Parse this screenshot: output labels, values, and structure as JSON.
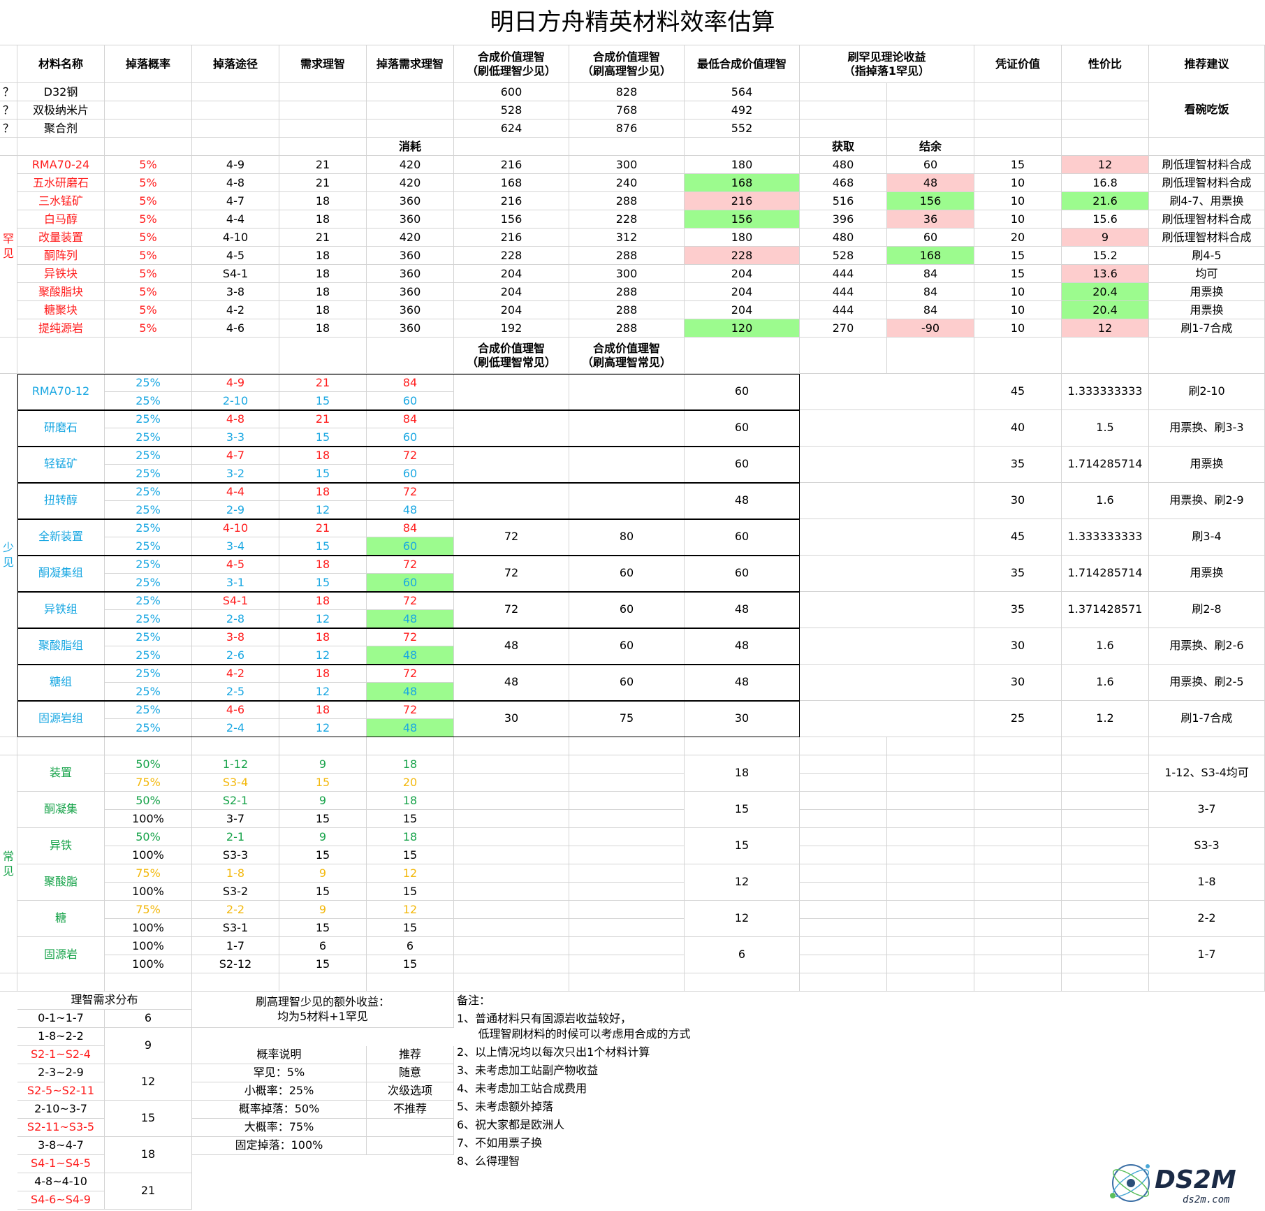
{
  "title": "明日方舟精英材料效率估算",
  "header": [
    "",
    "材料名称",
    "掉落概率",
    "掉落途径",
    "需求理智",
    "掉落需求理智",
    "合成价值理智\n（刷低理智少见）",
    "合成价值理智\n（刷高理智少见）",
    "最低合成价值理智",
    "刷罕见理论收益\n（指掉落1罕见）",
    "",
    "凭证价值",
    "性价比",
    "推荐建议"
  ],
  "top_rows": [
    [
      "？",
      "D32钢",
      "",
      "",
      "",
      "",
      "600",
      "828",
      "564",
      "",
      "",
      "",
      "",
      ""
    ],
    [
      "？",
      "双极纳米片",
      "",
      "",
      "",
      "",
      "528",
      "768",
      "492",
      "",
      "",
      "",
      "",
      ""
    ],
    [
      "？",
      "聚合剂",
      "",
      "",
      "",
      "",
      "624",
      "876",
      "552",
      "",
      "",
      "",
      "",
      ""
    ]
  ],
  "top_advice": "看碗吃饭",
  "rare_sub": [
    "",
    "",
    "",
    "",
    "",
    "消耗",
    "",
    "",
    "",
    "获取",
    "结余",
    "",
    "",
    ""
  ],
  "rare_label": "罕\n见",
  "rare_rows": [
    [
      "",
      "RMA70-24",
      "5%",
      "4-9",
      "21",
      "420",
      "216",
      "300",
      "180",
      "480",
      "60",
      "15",
      "12",
      "刷低理智材料合成"
    ],
    [
      "",
      "五水研磨石",
      "5%",
      "4-8",
      "21",
      "420",
      "168",
      "240",
      "168",
      "468",
      "48",
      "10",
      "16.8",
      "刷低理智材料合成"
    ],
    [
      "",
      "三水锰矿",
      "5%",
      "4-7",
      "18",
      "360",
      "216",
      "288",
      "216",
      "516",
      "156",
      "10",
      "21.6",
      "刷4-7、用票换"
    ],
    [
      "",
      "白马醇",
      "5%",
      "4-4",
      "18",
      "360",
      "156",
      "228",
      "156",
      "396",
      "36",
      "10",
      "15.6",
      "刷低理智材料合成"
    ],
    [
      "",
      "改量装置",
      "5%",
      "4-10",
      "21",
      "420",
      "216",
      "312",
      "180",
      "480",
      "60",
      "20",
      "9",
      "刷低理智材料合成"
    ],
    [
      "",
      "酮阵列",
      "5%",
      "4-5",
      "18",
      "360",
      "228",
      "288",
      "228",
      "528",
      "168",
      "15",
      "15.2",
      "刷4-5"
    ],
    [
      "",
      "异铁块",
      "5%",
      "S4-1",
      "18",
      "360",
      "204",
      "300",
      "204",
      "444",
      "84",
      "15",
      "13.6",
      "均可"
    ],
    [
      "",
      "聚酸脂块",
      "5%",
      "3-8",
      "18",
      "360",
      "204",
      "288",
      "204",
      "444",
      "84",
      "10",
      "20.4",
      "用票换"
    ],
    [
      "",
      "糖聚块",
      "5%",
      "4-2",
      "18",
      "360",
      "204",
      "288",
      "204",
      "444",
      "84",
      "10",
      "20.4",
      "用票换"
    ],
    [
      "",
      "提纯源岩",
      "5%",
      "4-6",
      "18",
      "360",
      "192",
      "288",
      "120",
      "270",
      "-90",
      "10",
      "12",
      "刷1-7合成"
    ]
  ],
  "mid_header": [
    "",
    "",
    "",
    "",
    "",
    "",
    "合成价值理智\n（刷低理智常见）",
    "合成价值理智\n（刷高理智常见）",
    "",
    "",
    "",
    "",
    "",
    ""
  ],
  "uncommon_label": "少\n见",
  "uncommon": [
    {
      "name": "RMA70-12",
      "r1": [
        "25%",
        "4-9",
        "21",
        "84"
      ],
      "r2": [
        "25%",
        "2-10",
        "15",
        "60"
      ],
      "low": "",
      "high": "",
      "min": "60",
      "cert": "45",
      "ratio": "1.333333333",
      "adv": "刷2-10"
    },
    {
      "name": "研磨石",
      "r1": [
        "25%",
        "4-8",
        "21",
        "84"
      ],
      "r2": [
        "25%",
        "3-3",
        "15",
        "60"
      ],
      "low": "",
      "high": "",
      "min": "60",
      "cert": "40",
      "ratio": "1.5",
      "adv": "用票换、刷3-3"
    },
    {
      "name": "轻锰矿",
      "r1": [
        "25%",
        "4-7",
        "18",
        "72"
      ],
      "r2": [
        "25%",
        "3-2",
        "15",
        "60"
      ],
      "low": "",
      "high": "",
      "min": "60",
      "cert": "35",
      "ratio": "1.714285714",
      "adv": "用票换"
    },
    {
      "name": "扭转醇",
      "r1": [
        "25%",
        "4-4",
        "18",
        "72"
      ],
      "r2": [
        "25%",
        "2-9",
        "12",
        "48"
      ],
      "low": "",
      "high": "",
      "min": "48",
      "cert": "30",
      "ratio": "1.6",
      "adv": "用票换、刷2-9"
    },
    {
      "name": "全新装置",
      "r1": [
        "25%",
        "4-10",
        "21",
        "84"
      ],
      "r2": [
        "25%",
        "3-4",
        "15",
        "60"
      ],
      "low": "72",
      "high": "80",
      "min": "60",
      "cert": "45",
      "ratio": "1.333333333",
      "adv": "刷3-4"
    },
    {
      "name": "酮凝集组",
      "r1": [
        "25%",
        "4-5",
        "18",
        "72"
      ],
      "r2": [
        "25%",
        "3-1",
        "15",
        "60"
      ],
      "low": "72",
      "high": "60",
      "min": "60",
      "cert": "35",
      "ratio": "1.714285714",
      "adv": "用票换"
    },
    {
      "name": "异铁组",
      "r1": [
        "25%",
        "S4-1",
        "18",
        "72"
      ],
      "r2": [
        "25%",
        "2-8",
        "12",
        "48"
      ],
      "low": "72",
      "high": "60",
      "min": "48",
      "cert": "35",
      "ratio": "1.371428571",
      "adv": "刷2-8"
    },
    {
      "name": "聚酸脂组",
      "r1": [
        "25%",
        "3-8",
        "18",
        "72"
      ],
      "r2": [
        "25%",
        "2-6",
        "12",
        "48"
      ],
      "low": "48",
      "high": "60",
      "min": "48",
      "cert": "30",
      "ratio": "1.6",
      "adv": "用票换、刷2-6"
    },
    {
      "name": "糖组",
      "r1": [
        "25%",
        "4-2",
        "18",
        "72"
      ],
      "r2": [
        "25%",
        "2-5",
        "12",
        "48"
      ],
      "low": "48",
      "high": "60",
      "min": "48",
      "cert": "30",
      "ratio": "1.6",
      "adv": "用票换、刷2-5"
    },
    {
      "name": "固源岩组",
      "r1": [
        "25%",
        "4-6",
        "18",
        "72"
      ],
      "r2": [
        "25%",
        "2-4",
        "12",
        "48"
      ],
      "low": "30",
      "high": "75",
      "min": "30",
      "cert": "25",
      "ratio": "1.2",
      "adv": "刷1-7合成"
    }
  ],
  "common_label": "常\n见",
  "common": [
    {
      "name": "装置",
      "r1": [
        "50%",
        "1-12",
        "9",
        "18"
      ],
      "r2": [
        "75%",
        "S3-4",
        "15",
        "20"
      ],
      "min": "18",
      "adv": "1-12、S3-4均可"
    },
    {
      "name": "酮凝集",
      "r1": [
        "50%",
        "S2-1",
        "9",
        "18"
      ],
      "r2": [
        "100%",
        "3-7",
        "15",
        "15"
      ],
      "min": "15",
      "adv": "3-7"
    },
    {
      "name": "异铁",
      "r1": [
        "50%",
        "2-1",
        "9",
        "18"
      ],
      "r2": [
        "100%",
        "S3-3",
        "15",
        "15"
      ],
      "min": "15",
      "adv": "S3-3"
    },
    {
      "name": "聚酸脂",
      "r1": [
        "75%",
        "1-8",
        "9",
        "12"
      ],
      "r2": [
        "100%",
        "S3-2",
        "15",
        "15"
      ],
      "min": "12",
      "adv": "1-8"
    },
    {
      "name": "糖",
      "r1": [
        "75%",
        "2-2",
        "9",
        "12"
      ],
      "r2": [
        "100%",
        "S3-1",
        "15",
        "15"
      ],
      "min": "12",
      "adv": "2-2"
    },
    {
      "name": "固源岩",
      "r1": [
        "100%",
        "1-7",
        "6",
        "6"
      ],
      "r2": [
        "100%",
        "S2-12",
        "15",
        "15"
      ],
      "min": "6",
      "adv": "1-7"
    }
  ],
  "dist_title": "理智需求分布",
  "dist": [
    {
      "ranges": [
        "0-1~1-7"
      ],
      "v": "6"
    },
    {
      "ranges": [
        "1-8~2-2",
        "S2-1~S2-4"
      ],
      "v": "9"
    },
    {
      "ranges": [
        "2-3~2-9",
        "S2-5~S2-11"
      ],
      "v": "12"
    },
    {
      "ranges": [
        "2-10~3-7",
        "S2-11~S3-5"
      ],
      "v": "15"
    },
    {
      "ranges": [
        "3-8~4-7",
        "S4-1~S4-5"
      ],
      "v": "18"
    },
    {
      "ranges": [
        "4-8~4-10",
        "S4-6~S4-9"
      ],
      "v": "21"
    }
  ],
  "extra_note": "刷高理智少见的额外收益：\n均为5材料+1罕见",
  "prob": [
    {
      "label": "概率说明",
      "legend": "推荐"
    },
    {
      "label": "罕见：5%",
      "legend": "随意"
    },
    {
      "label": "小概率：25%",
      "legend": "次级选项"
    },
    {
      "label": "概率掉落：50%",
      "legend": "不推荐"
    },
    {
      "label": "大概率：75%",
      "legend": ""
    },
    {
      "label": "固定掉落：100%",
      "legend": ""
    }
  ],
  "notes_title": "备注：",
  "notes": [
    "1、普通材料只有固源岩收益较好，",
    "      低理智刷材料的时候可以考虑用合成的方式",
    "2、以上情况均以每次只出1个材料计算",
    "3、未考虑加工站副产物收益",
    "4、未考虑加工站合成费用",
    "5、未考虑额外掉落",
    "6、祝大家都是欧洲人",
    "7、不如用票子换",
    "8、么得理智"
  ],
  "logo": {
    "main": "DS2M",
    "sub": "ds2m.com"
  },
  "colors": {
    "recommend": "#9cfb8e",
    "not_recommend": "#fdcdcd",
    "secondary": "#fdc968",
    "rare_text": "#ff1c1c",
    "uncommon_text": "#19a7e2",
    "common_text": "#17a34a"
  }
}
